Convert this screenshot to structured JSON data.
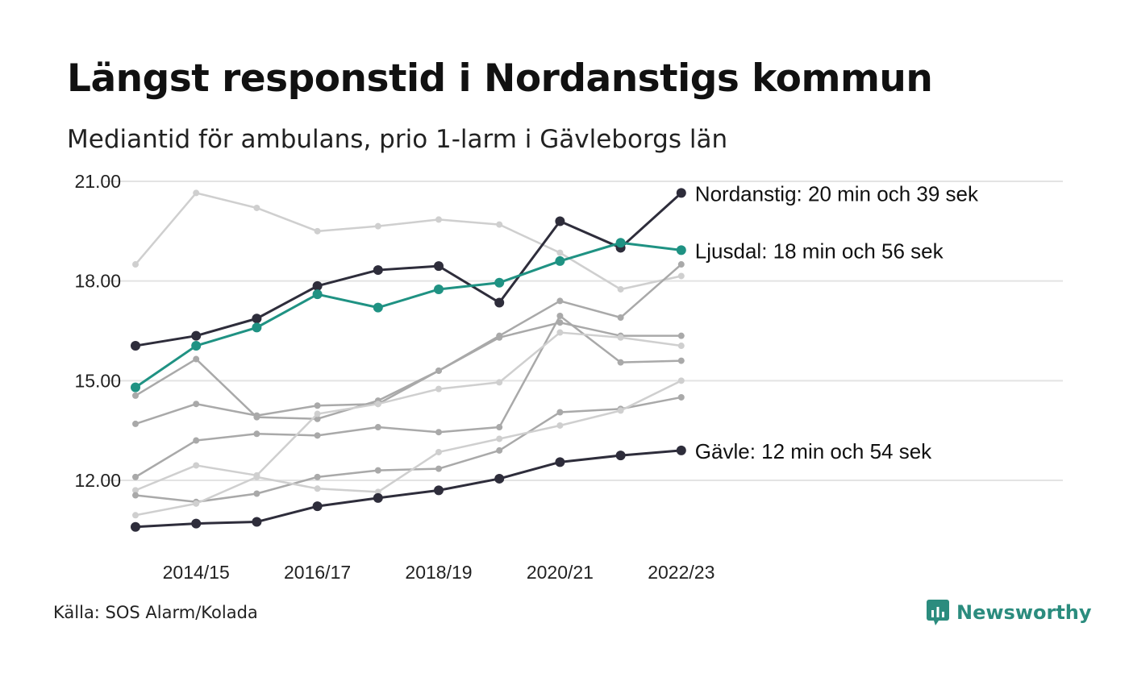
{
  "title": "Längst responstid i Nordanstigs kommun",
  "subtitle": "Mediantid för ambulans, prio 1-larm i Gävleborgs län",
  "source": "Källa: SOS Alarm/Kolada",
  "brand": {
    "name": "Newsworthy",
    "icon": "newsworthy-logo-icon",
    "color": "#2b8c7e"
  },
  "colors": {
    "highlight_dark": "#2e2d3b",
    "highlight_teal": "#1f9283",
    "other_mid": "#a9a9a9",
    "other_light": "#cfcfcf",
    "grid": "#e3e3e3"
  },
  "chart_data": {
    "type": "line",
    "x": [
      "2013/14",
      "2014/15",
      "2015/16",
      "2016/17",
      "2017/18",
      "2018/19",
      "2019/20",
      "2020/21",
      "2021/22",
      "2022/23"
    ],
    "x_tick_labels": [
      "2014/15",
      "2016/17",
      "2018/19",
      "2020/21",
      "2022/23"
    ],
    "y_ticks": [
      "12.00",
      "15.00",
      "18.00",
      "21.00"
    ],
    "ylim": [
      10.0,
      21.5
    ],
    "grid": "horizontal",
    "series": [
      {
        "name": "Nordanstig",
        "label": "Nordanstig: 20 min och 39 sek",
        "style": "highlight_dark",
        "values": [
          16.05,
          16.35,
          16.87,
          17.85,
          18.33,
          18.45,
          17.35,
          19.8,
          19.0,
          20.65
        ]
      },
      {
        "name": "Ljusdal",
        "label": "Ljusdal: 18 min och 56 sek",
        "style": "highlight_teal",
        "values": [
          14.8,
          16.05,
          16.6,
          17.6,
          17.2,
          17.75,
          17.95,
          18.6,
          19.15,
          18.93
        ]
      },
      {
        "name": "Gävle",
        "label": "Gävle: 12 min och 54 sek",
        "style": "highlight_dark",
        "values": [
          10.6,
          10.7,
          10.75,
          11.22,
          11.47,
          11.7,
          12.05,
          12.55,
          12.75,
          12.9
        ]
      },
      {
        "style": "other_light",
        "values": [
          18.5,
          20.65,
          20.2,
          19.5,
          19.65,
          19.85,
          19.7,
          18.85,
          17.75,
          18.15
        ]
      },
      {
        "style": "other_mid",
        "values": [
          14.55,
          15.65,
          13.9,
          13.85,
          14.4,
          15.3,
          16.35,
          17.4,
          16.9,
          18.5
        ]
      },
      {
        "style": "other_mid",
        "values": [
          13.7,
          14.3,
          13.95,
          14.25,
          14.3,
          15.3,
          16.3,
          16.75,
          16.35,
          16.35
        ]
      },
      {
        "style": "other_mid",
        "values": [
          12.1,
          13.2,
          13.4,
          13.35,
          13.6,
          13.45,
          13.6,
          16.95,
          15.55,
          15.6
        ]
      },
      {
        "style": "other_light",
        "values": [
          11.7,
          12.45,
          12.15,
          14.0,
          14.3,
          14.75,
          14.95,
          16.45,
          16.3,
          16.05
        ]
      },
      {
        "style": "other_mid",
        "values": [
          11.55,
          11.35,
          11.6,
          12.1,
          12.3,
          12.35,
          12.9,
          14.05,
          14.15,
          14.5
        ]
      },
      {
        "style": "other_light",
        "values": [
          10.95,
          11.3,
          12.1,
          11.75,
          11.65,
          12.85,
          13.25,
          13.65,
          14.1,
          15.0
        ]
      }
    ]
  }
}
